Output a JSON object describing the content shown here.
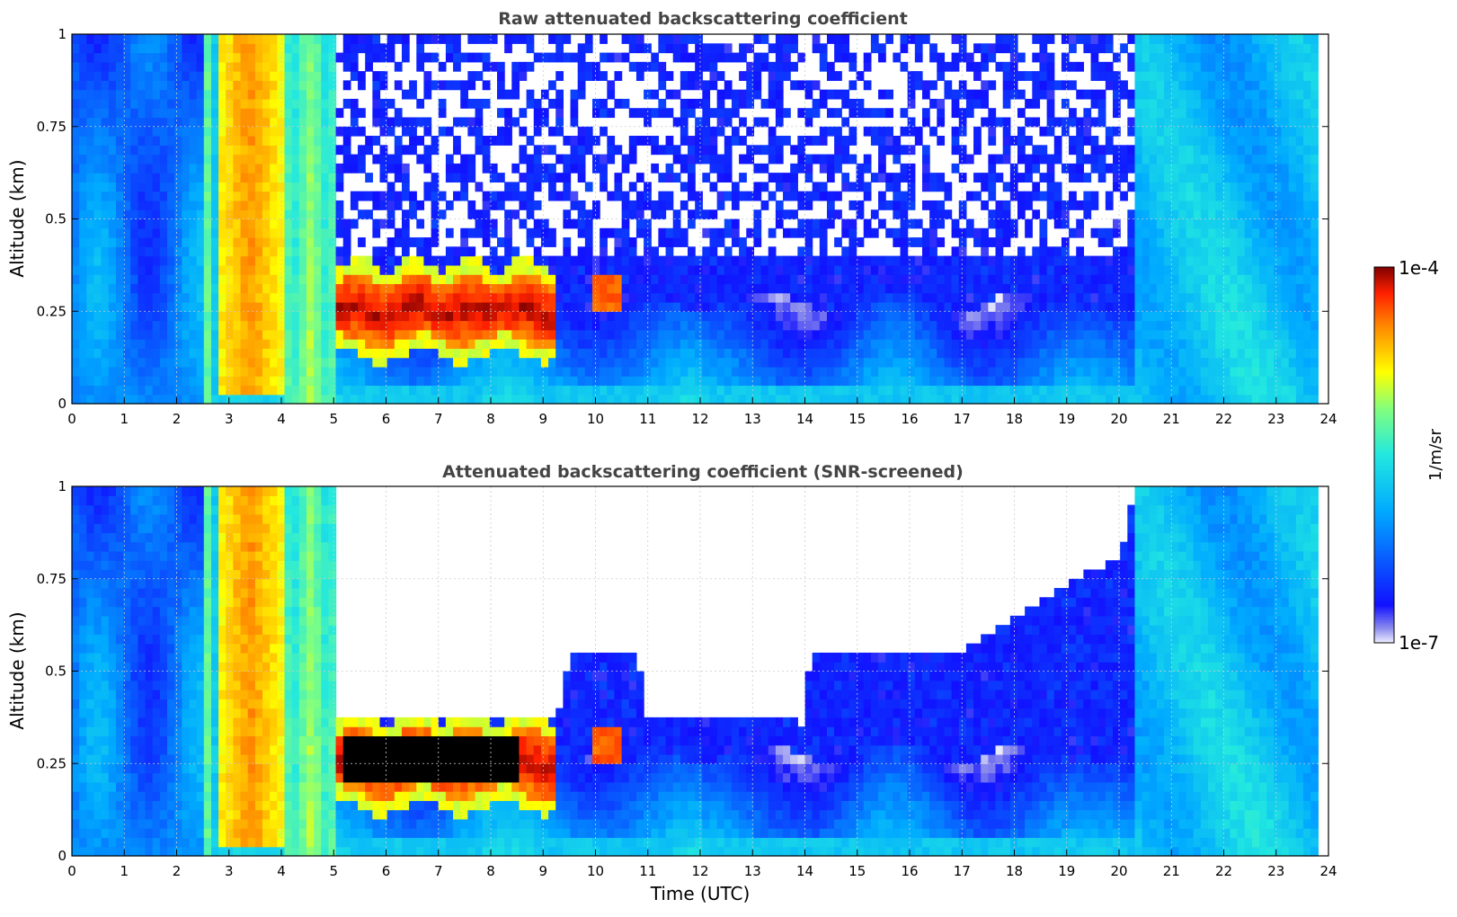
{
  "chart_data": [
    {
      "type": "heatmap",
      "title": "Raw attenuated backscattering coefficient",
      "xlabel": "",
      "ylabel": "Altitude (km)",
      "xlim": [
        0,
        24
      ],
      "ylim": [
        0,
        1
      ],
      "x_ticks": [
        "0",
        "1",
        "2",
        "3",
        "4",
        "5",
        "6",
        "7",
        "8",
        "9",
        "10",
        "11",
        "12",
        "13",
        "14",
        "15",
        "16",
        "17",
        "18",
        "19",
        "20",
        "21",
        "22",
        "23",
        "24"
      ],
      "y_ticks": [
        "0",
        "0.25",
        "0.5",
        "0.75",
        "1"
      ],
      "y_tick_values": [
        0,
        0.25,
        0.5,
        0.75,
        1
      ],
      "grid": true,
      "screened": false,
      "features": [
        {
          "x": [
            2.8,
            4.0
          ],
          "y": [
            0,
            1
          ],
          "level": 0.72
        },
        {
          "x": [
            5.1,
            9.2
          ],
          "y": [
            0.18,
            0.35
          ],
          "level": 0.98
        },
        {
          "x": [
            0,
            2.5
          ],
          "y": [
            0,
            1
          ],
          "level": 0.35
        },
        {
          "x": [
            20.3,
            23.8
          ],
          "y": [
            0,
            1
          ],
          "level": 0.42
        }
      ]
    },
    {
      "type": "heatmap",
      "title": "Attenuated backscattering coefficient (SNR-screened)",
      "xlabel": "Time (UTC)",
      "ylabel": "Altitude (km)",
      "xlim": [
        0,
        24
      ],
      "ylim": [
        0,
        1
      ],
      "x_ticks": [
        "0",
        "1",
        "2",
        "3",
        "4",
        "5",
        "6",
        "7",
        "8",
        "9",
        "10",
        "11",
        "12",
        "13",
        "14",
        "15",
        "16",
        "17",
        "18",
        "19",
        "20",
        "21",
        "22",
        "23",
        "24"
      ],
      "y_ticks": [
        "0",
        "0.25",
        "0.5",
        "0.75",
        "1"
      ],
      "y_tick_values": [
        0,
        0.25,
        0.5,
        0.75,
        1
      ],
      "grid": true,
      "screened": true,
      "saturated_color": "#000000",
      "signal_top_km": [
        [
          0,
          1
        ],
        [
          5.0,
          1
        ],
        [
          5.1,
          0.38
        ],
        [
          9.3,
          0.38
        ],
        [
          9.5,
          0.55
        ],
        [
          10.8,
          0.55
        ],
        [
          11.0,
          0.37
        ],
        [
          12.5,
          0.38
        ],
        [
          14.0,
          0.36
        ],
        [
          14.1,
          0.55
        ],
        [
          17.0,
          0.56
        ],
        [
          19.0,
          0.74
        ],
        [
          20.0,
          0.8
        ],
        [
          20.3,
          1
        ],
        [
          23.8,
          1
        ]
      ]
    }
  ],
  "colorbar": {
    "label": "1/m/sr",
    "max_label": "1e-4",
    "min_label": "1e-7",
    "scale": "log",
    "range": [
      1e-07,
      0.0001
    ],
    "colormap": "jet"
  },
  "colors": {
    "nan": "#ffffff",
    "title": "#444444",
    "grid": "#cccccc"
  }
}
